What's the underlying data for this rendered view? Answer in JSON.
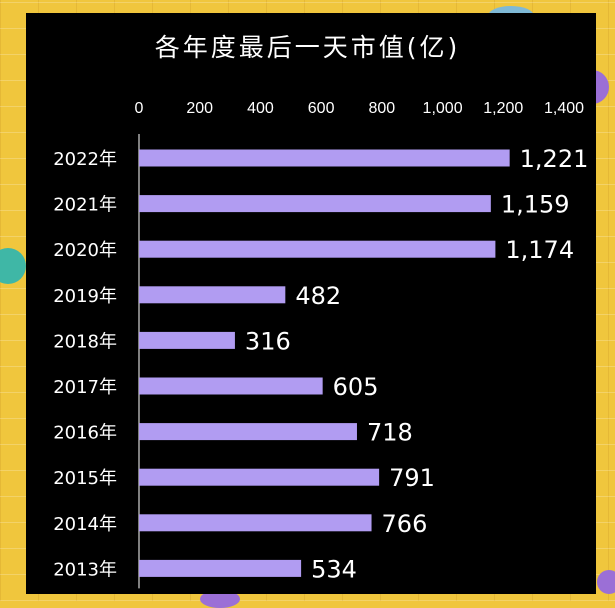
{
  "chart_data": {
    "type": "bar",
    "orientation": "horizontal",
    "title": "各年度最后一天市值(亿)",
    "categories": [
      "2022年",
      "2021年",
      "2020年",
      "2019年",
      "2018年",
      "2017年",
      "2016年",
      "2015年",
      "2014年",
      "2013年"
    ],
    "values": [
      1221,
      1159,
      1174,
      482,
      316,
      605,
      718,
      791,
      766,
      534
    ],
    "data_labels": [
      "1,221",
      "1,159",
      "1,174",
      "482",
      "316",
      "605",
      "718",
      "791",
      "766",
      "534"
    ],
    "xlim": [
      0,
      1400
    ],
    "x_ticks": [
      "0",
      "200",
      "400",
      "600",
      "800",
      "1,000",
      "1,200",
      "1,400"
    ],
    "x_axis_position": "top",
    "grid": false,
    "legend": "none",
    "colors": {
      "bar": "#b19cf2",
      "background": "#000000",
      "text": "#ffffff",
      "axis": "#ffffff"
    }
  }
}
